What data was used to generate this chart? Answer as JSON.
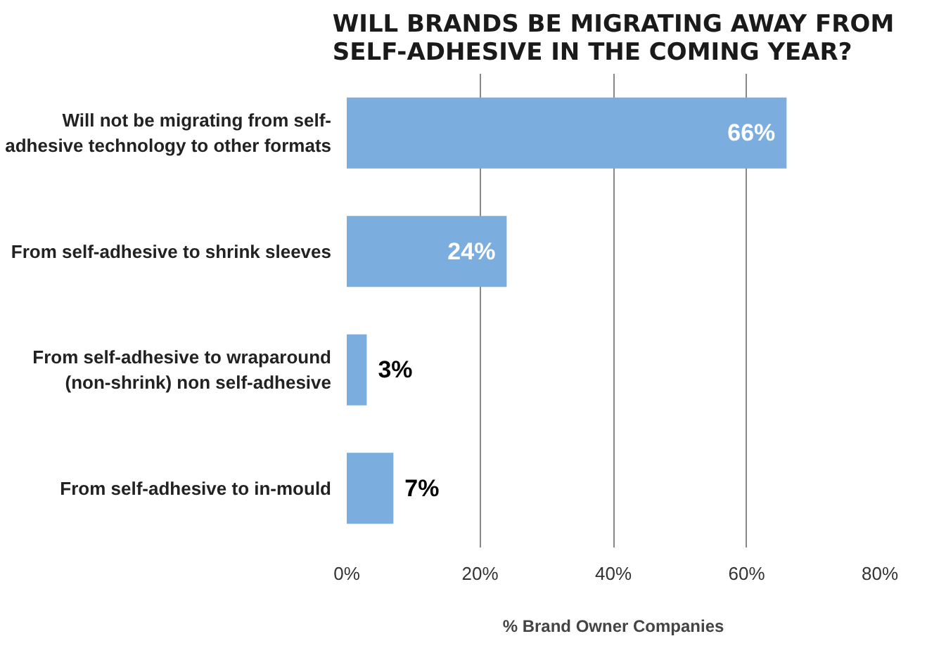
{
  "chart_data": {
    "type": "bar",
    "orientation": "horizontal",
    "title": "WILL BRANDS BE MIGRATING AWAY FROM SELF-ADHESIVE IN THE COMING YEAR?",
    "xlabel": "% Brand Owner Companies",
    "categories": [
      "Will not be migrating from self-adhesive technology to other formats",
      "From self-adhesive to shrink sleeves",
      "From self-adhesive to wraparound (non-shrink) non self-adhesive",
      "From self-adhesive to in-mould"
    ],
    "values": [
      66,
      24,
      3,
      7
    ],
    "value_labels": [
      "66%",
      "24%",
      "3%",
      "7%"
    ],
    "color": "#7badde",
    "xlim": [
      0,
      80
    ],
    "xticks": [
      {
        "value": 0,
        "label": "0%"
      },
      {
        "value": 20,
        "label": "20%"
      },
      {
        "value": 40,
        "label": "40%"
      },
      {
        "value": 60,
        "label": "60%"
      },
      {
        "value": 80,
        "label": "80%"
      }
    ],
    "grid": "x",
    "legend": false
  }
}
